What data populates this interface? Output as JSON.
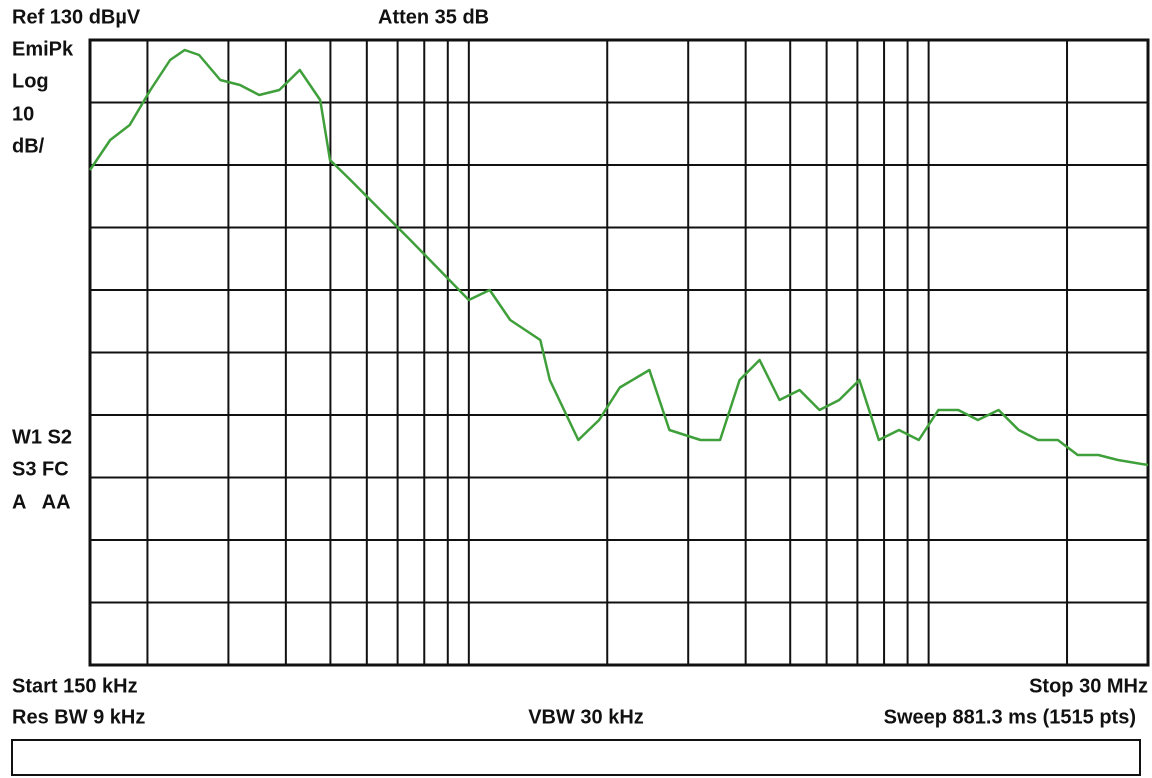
{
  "chart_data": {
    "type": "line",
    "annotations": [
      "Ref 130 dBµV",
      "Atten 35 dB",
      "EmiPk",
      "Log",
      "10",
      "dB/",
      "W1 S2",
      "S3 FC",
      "A   AA",
      "Start 150 kHz",
      "Stop 30 MHz",
      "Res BW 9 kHz",
      "VBW 30 kHz",
      "Sweep 881.3 ms (1515 pts)"
    ],
    "x_log_scale": true,
    "xlim": [
      0.15,
      30
    ],
    "ylim": [
      30,
      130
    ],
    "xticks": [
      0.2,
      0.3,
      0.4,
      0.5,
      0.6,
      0.7,
      0.8,
      0.9,
      1,
      2,
      3,
      4,
      5,
      6,
      7,
      8,
      9,
      10,
      20
    ],
    "yticks": [
      40,
      50,
      60,
      70,
      80,
      90,
      100,
      110,
      120
    ],
    "grid": true,
    "color": "#3f9f3a",
    "x": [
      0.15,
      0.166,
      0.183,
      0.203,
      0.224,
      0.241,
      0.259,
      0.288,
      0.318,
      0.35,
      0.387,
      0.429,
      0.475,
      0.499,
      0.553,
      0.642,
      0.746,
      0.864,
      1.0,
      1.11,
      1.23,
      1.43,
      1.5,
      1.65,
      1.73,
      1.92,
      2.13,
      2.47,
      2.73,
      3.19,
      3.52,
      3.88,
      4.29,
      4.74,
      5.24,
      5.79,
      6.39,
      7.07,
      7.79,
      8.62,
      9.52,
      10.5,
      11.6,
      12.8,
      14.2,
      15.7,
      17.3,
      19.1,
      21.1,
      23.4,
      25.8,
      30
    ],
    "values": [
      109.2,
      114,
      116.4,
      122,
      126.8,
      128.4,
      127.6,
      123.6,
      122.8,
      121.2,
      122,
      125.2,
      120.4,
      110.8,
      107.6,
      102.8,
      98,
      93.2,
      88.4,
      90,
      85.2,
      82,
      75.6,
      69.2,
      66,
      69.2,
      74.4,
      77.2,
      67.6,
      66,
      66,
      75.6,
      78.8,
      72.4,
      74,
      70.8,
      72.4,
      75.6,
      66,
      67.6,
      66,
      70.8,
      70.8,
      69.2,
      70.8,
      67.6,
      66,
      66,
      63.6,
      63.6,
      62.8,
      62
    ]
  }
}
